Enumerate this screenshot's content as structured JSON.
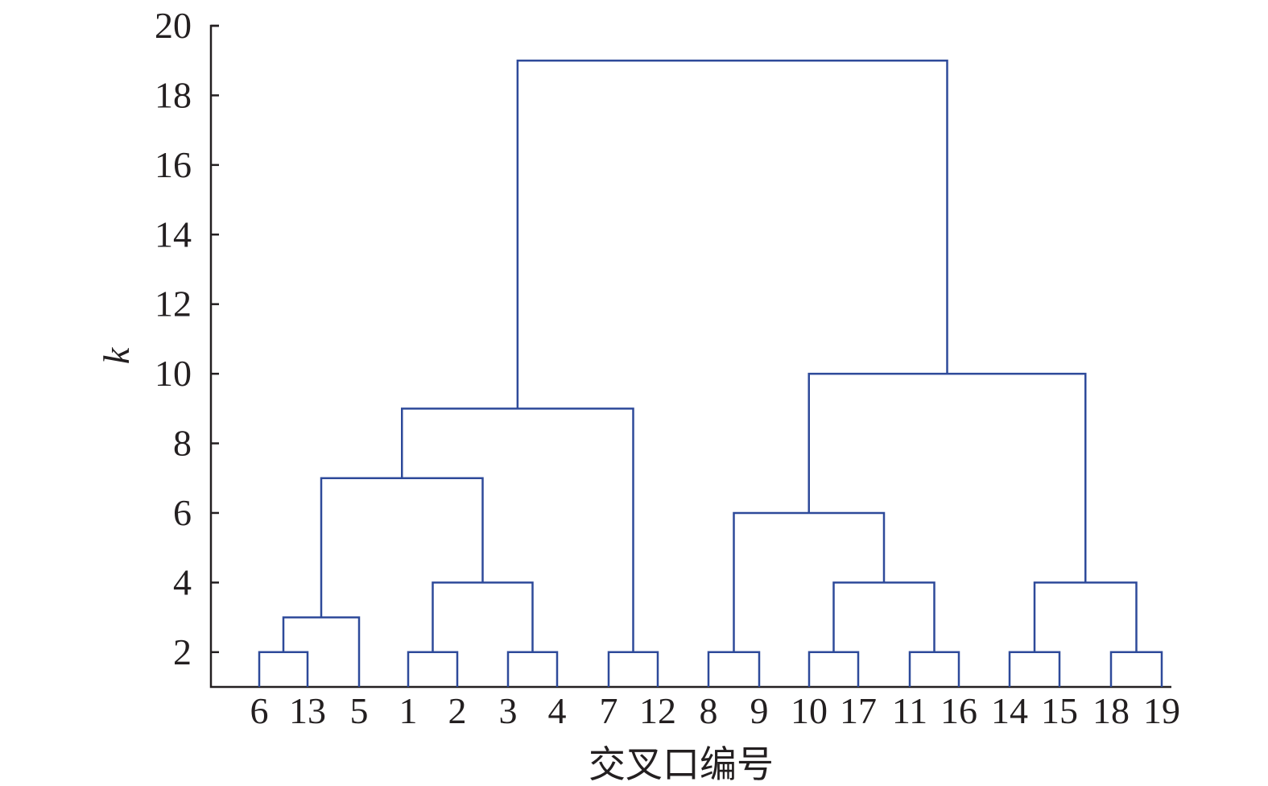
{
  "chart_data": {
    "type": "dendrogram",
    "title": "",
    "xlabel": "交叉口编号",
    "ylabel": "k",
    "ylim": [
      1,
      20
    ],
    "yticks": [
      2,
      4,
      6,
      8,
      10,
      12,
      14,
      16,
      18,
      20
    ],
    "leaf_order": [
      "6",
      "13",
      "5",
      "1",
      "2",
      "3",
      "4",
      "7",
      "12",
      "8",
      "9",
      "10",
      "17",
      "11",
      "16",
      "14",
      "15",
      "18",
      "19"
    ],
    "merges": [
      {
        "left": "6",
        "right": "13",
        "height": 2
      },
      {
        "left": "6+13",
        "right": "5",
        "height": 3
      },
      {
        "left": "1",
        "right": "2",
        "height": 2
      },
      {
        "left": "3",
        "right": "4",
        "height": 2
      },
      {
        "left": "1+2",
        "right": "3+4",
        "height": 4
      },
      {
        "left": "6+13+5",
        "right": "1+2+3+4",
        "height": 7
      },
      {
        "left": "7",
        "right": "12",
        "height": 2
      },
      {
        "left": "6+13+5+1+2+3+4",
        "right": "7+12",
        "height": 9
      },
      {
        "left": "8",
        "right": "9",
        "height": 2
      },
      {
        "left": "10",
        "right": "17",
        "height": 2
      },
      {
        "left": "11",
        "right": "16",
        "height": 2
      },
      {
        "left": "10+17",
        "right": "11+16",
        "height": 4
      },
      {
        "left": "8+9",
        "right": "10+17+11+16",
        "height": 6
      },
      {
        "left": "14",
        "right": "15",
        "height": 2
      },
      {
        "left": "18",
        "right": "19",
        "height": 2
      },
      {
        "left": "14+15",
        "right": "18+19",
        "height": 4
      },
      {
        "left": "8+9+10+17+11+16",
        "right": "14+15+18+19",
        "height": 10
      },
      {
        "left": "left-cluster",
        "right": "right-cluster",
        "height": 19
      }
    ],
    "colors": {
      "links": "#2e4a9a",
      "axis": "#231f20",
      "text": "#231f20"
    },
    "grid": false
  }
}
